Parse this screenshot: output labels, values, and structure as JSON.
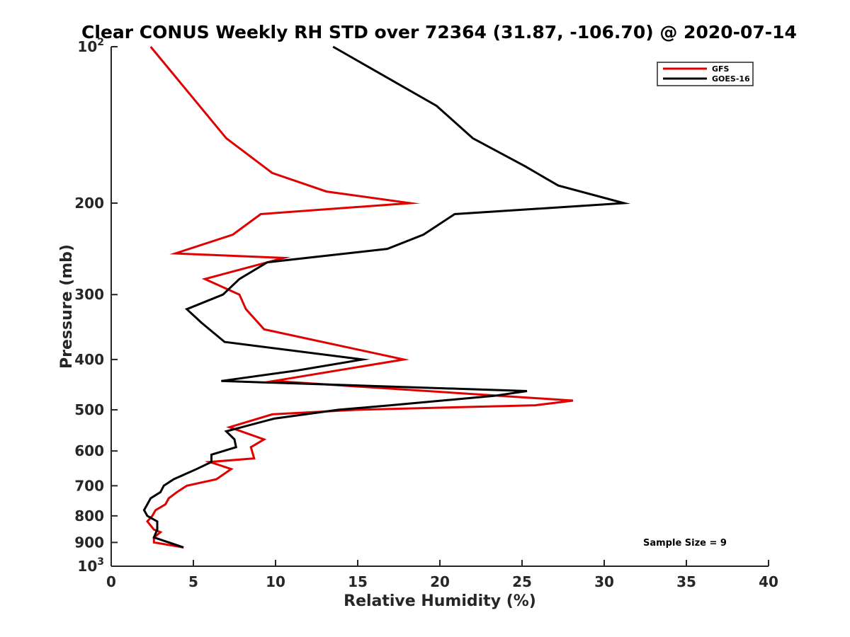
{
  "chart_data": {
    "type": "line",
    "title": "Clear CONUS Weekly RH STD over 72364 (31.87, -106.70) @ 2020-07-14",
    "xlabel": "Relative Humidity (%)",
    "ylabel": "Pressure (mb)",
    "xlim": [
      0,
      40
    ],
    "ylim": [
      100,
      1000
    ],
    "y_scale": "log",
    "y_reversed": true,
    "x_ticks": [
      "0",
      "5",
      "10",
      "15",
      "20",
      "25",
      "30",
      "35",
      "40"
    ],
    "y_ticks": [
      {
        "value": 100,
        "base": "10",
        "exp": "2"
      },
      {
        "value": 200,
        "label": "200"
      },
      {
        "value": 300,
        "label": "300"
      },
      {
        "value": 400,
        "label": "400"
      },
      {
        "value": 500,
        "label": "500"
      },
      {
        "value": 600,
        "label": "600"
      },
      {
        "value": 700,
        "label": "700"
      },
      {
        "value": 800,
        "label": "800"
      },
      {
        "value": 900,
        "label": "900"
      },
      {
        "value": 1000,
        "base": "10",
        "exp": "3"
      }
    ],
    "legend_position": "top-right",
    "grid": false,
    "annotation": "Sample Size = 9",
    "series": [
      {
        "name": "GFS",
        "color": "#e00000",
        "points": [
          [
            2.4,
            100
          ],
          [
            7.0,
            150
          ],
          [
            9.8,
            175
          ],
          [
            13.1,
            190
          ],
          [
            18.2,
            200
          ],
          [
            9.1,
            210
          ],
          [
            7.4,
            230
          ],
          [
            3.9,
            250
          ],
          [
            10.5,
            255
          ],
          [
            5.7,
            280
          ],
          [
            7.8,
            300
          ],
          [
            8.2,
            320
          ],
          [
            9.3,
            350
          ],
          [
            17.8,
            400
          ],
          [
            9.9,
            440
          ],
          [
            28.1,
            480
          ],
          [
            25.8,
            490
          ],
          [
            14.9,
            500
          ],
          [
            9.8,
            510
          ],
          [
            7.2,
            540
          ],
          [
            9.3,
            570
          ],
          [
            8.5,
            590
          ],
          [
            8.7,
            620
          ],
          [
            6.0,
            630
          ],
          [
            7.3,
            650
          ],
          [
            6.4,
            680
          ],
          [
            4.6,
            700
          ],
          [
            4.0,
            720
          ],
          [
            3.5,
            740
          ],
          [
            3.3,
            760
          ],
          [
            2.7,
            780
          ],
          [
            2.5,
            800
          ],
          [
            2.2,
            820
          ],
          [
            2.6,
            850
          ],
          [
            3.0,
            860
          ],
          [
            2.6,
            880
          ],
          [
            2.6,
            900
          ],
          [
            4.4,
            920
          ]
        ]
      },
      {
        "name": "GOES-16",
        "color": "#000000",
        "points": [
          [
            13.5,
            100
          ],
          [
            19.8,
            130
          ],
          [
            22.0,
            150
          ],
          [
            25.2,
            170
          ],
          [
            27.2,
            185
          ],
          [
            31.2,
            200
          ],
          [
            20.9,
            210
          ],
          [
            19.0,
            230
          ],
          [
            16.8,
            245
          ],
          [
            9.5,
            260
          ],
          [
            7.8,
            280
          ],
          [
            6.8,
            300
          ],
          [
            4.6,
            320
          ],
          [
            5.5,
            340
          ],
          [
            6.9,
            370
          ],
          [
            15.3,
            400
          ],
          [
            11.3,
            420
          ],
          [
            6.7,
            440
          ],
          [
            25.3,
            460
          ],
          [
            23.3,
            470
          ],
          [
            17.0,
            490
          ],
          [
            13.8,
            500
          ],
          [
            9.9,
            520
          ],
          [
            7.0,
            550
          ],
          [
            7.5,
            570
          ],
          [
            7.6,
            590
          ],
          [
            6.1,
            610
          ],
          [
            6.1,
            630
          ],
          [
            5.2,
            650
          ],
          [
            3.8,
            680
          ],
          [
            3.2,
            700
          ],
          [
            3.0,
            720
          ],
          [
            2.4,
            740
          ],
          [
            2.2,
            760
          ],
          [
            2.0,
            780
          ],
          [
            2.2,
            800
          ],
          [
            2.8,
            820
          ],
          [
            2.8,
            850
          ],
          [
            2.6,
            880
          ],
          [
            4.4,
            920
          ]
        ]
      }
    ]
  }
}
